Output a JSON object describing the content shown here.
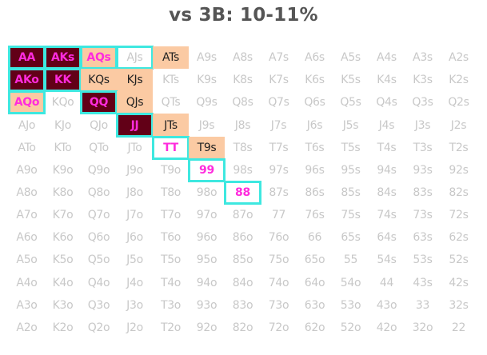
{
  "title": "vs 3B: 10-11%",
  "colors": {
    "call_bg": "#fbcaa3",
    "raise_bg": "#620017",
    "raise_text": "#ff2bdd",
    "highlight_border": "#3ee8e0",
    "fold_text": "#c8c8c8"
  },
  "chart_data": {
    "type": "table",
    "title": "vs 3B: 10-11%",
    "rows": [
      [
        "AA",
        "AKs",
        "AQs",
        "AJs",
        "ATs",
        "A9s",
        "A8s",
        "A7s",
        "A6s",
        "A5s",
        "A4s",
        "A3s",
        "A2s"
      ],
      [
        "AKo",
        "KK",
        "KQs",
        "KJs",
        "KTs",
        "K9s",
        "K8s",
        "K7s",
        "K6s",
        "K5s",
        "K4s",
        "K3s",
        "K2s"
      ],
      [
        "AQo",
        "KQo",
        "QQ",
        "QJs",
        "QTs",
        "Q9s",
        "Q8s",
        "Q7s",
        "Q6s",
        "Q5s",
        "Q4s",
        "Q3s",
        "Q2s"
      ],
      [
        "AJo",
        "KJo",
        "QJo",
        "JJ",
        "JTs",
        "J9s",
        "J8s",
        "J7s",
        "J6s",
        "J5s",
        "J4s",
        "J3s",
        "J2s"
      ],
      [
        "ATo",
        "KTo",
        "QTo",
        "JTo",
        "TT",
        "T9s",
        "T8s",
        "T7s",
        "T6s",
        "T5s",
        "T4s",
        "T3s",
        "T2s"
      ],
      [
        "A9o",
        "K9o",
        "Q9o",
        "J9o",
        "T9o",
        "99",
        "98s",
        "97s",
        "96s",
        "95s",
        "94s",
        "93s",
        "92s"
      ],
      [
        "A8o",
        "K8o",
        "Q8o",
        "J8o",
        "T8o",
        "98o",
        "88",
        "87s",
        "86s",
        "85s",
        "84s",
        "83s",
        "82s"
      ],
      [
        "A7o",
        "K7o",
        "Q7o",
        "J7o",
        "T7o",
        "97o",
        "87o",
        "77",
        "76s",
        "75s",
        "74s",
        "73s",
        "72s"
      ],
      [
        "A6o",
        "K6o",
        "Q6o",
        "J6o",
        "T6o",
        "96o",
        "86o",
        "76o",
        "66",
        "65s",
        "64s",
        "63s",
        "62s"
      ],
      [
        "A5o",
        "K5o",
        "Q5o",
        "J5o",
        "T5o",
        "95o",
        "85o",
        "75o",
        "65o",
        "55",
        "54s",
        "53s",
        "52s"
      ],
      [
        "A4o",
        "K4o",
        "Q4o",
        "J4o",
        "T4o",
        "94o",
        "84o",
        "74o",
        "64o",
        "54o",
        "44",
        "43s",
        "42s"
      ],
      [
        "A3o",
        "K3o",
        "Q3o",
        "J3o",
        "T3o",
        "93o",
        "83o",
        "73o",
        "63o",
        "53o",
        "43o",
        "33",
        "32s"
      ],
      [
        "A2o",
        "K2o",
        "Q2o",
        "J2o",
        "T2o",
        "92o",
        "82o",
        "72o",
        "62o",
        "52o",
        "42o",
        "32o",
        "22"
      ]
    ],
    "actions": {
      "raise": [
        "AA",
        "AKs",
        "AKo",
        "KK",
        "QQ",
        "JJ"
      ],
      "call": [
        "ATs",
        "KQs",
        "KJs",
        "QJs",
        "JTs",
        "T9s"
      ],
      "mixed_call": [
        "AQs",
        "AQo"
      ],
      "mixed": [
        "TT",
        "99",
        "88"
      ],
      "highlighted": [
        "AA",
        "AKs",
        "AQs",
        "AJs",
        "AKo",
        "KK",
        "AQo",
        "QQ",
        "JJ",
        "TT",
        "99",
        "88"
      ]
    }
  }
}
